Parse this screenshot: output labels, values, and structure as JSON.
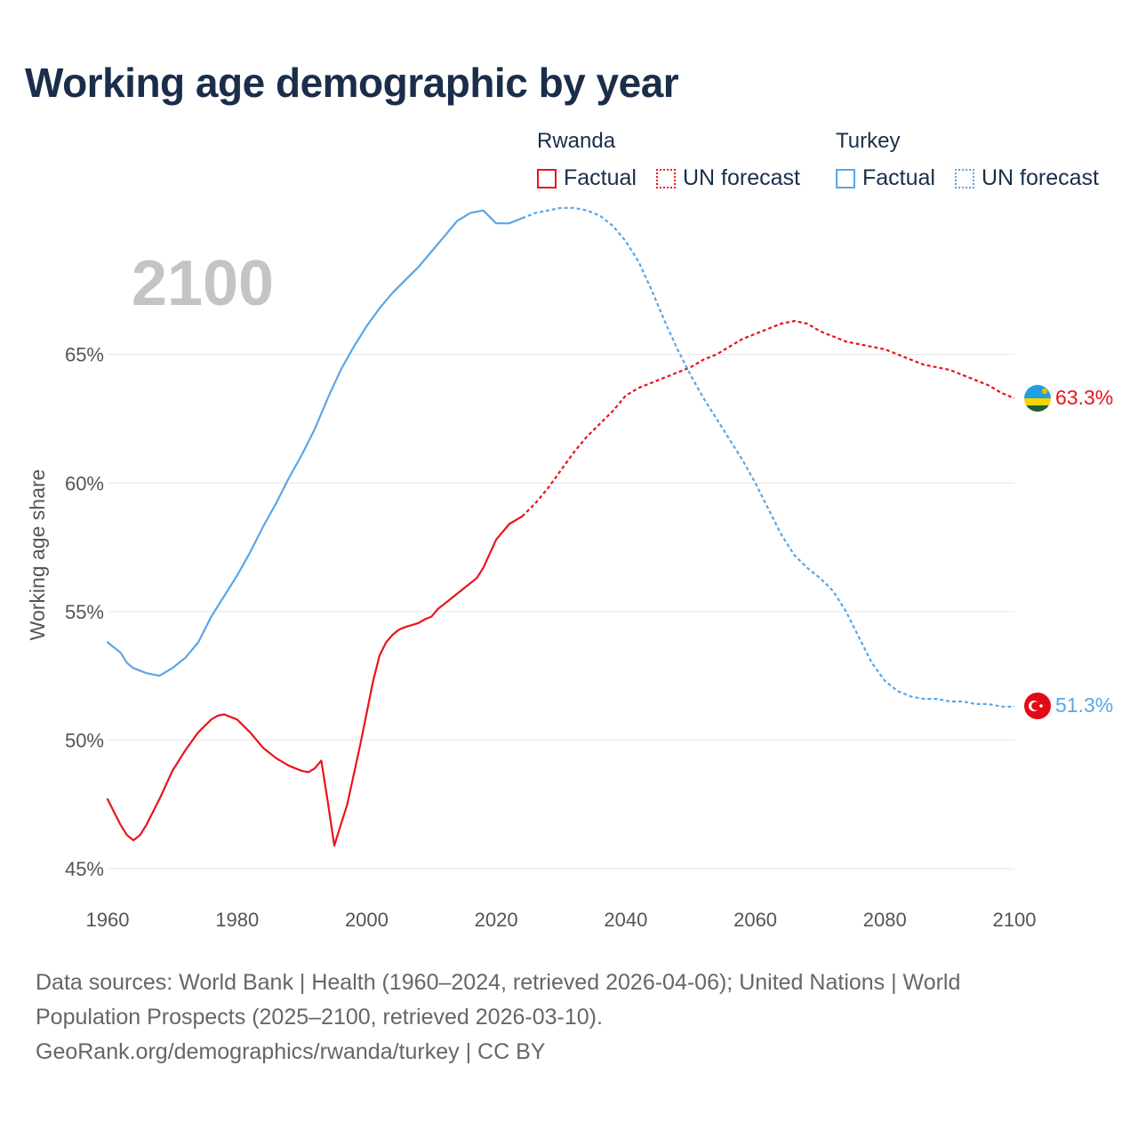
{
  "title": "Working age demographic by year",
  "legend": {
    "groups": [
      {
        "name": "Rwanda",
        "color": "#e8141c",
        "factual_label": "Factual",
        "forecast_label": "UN forecast"
      },
      {
        "name": "Turkey",
        "color": "#5aa6e6",
        "factual_label": "Factual",
        "forecast_label": "UN forecast"
      }
    ]
  },
  "year_overlay": "2100",
  "footer": {
    "line1": "Data sources: World Bank | Health (1960–2024, retrieved 2026-04-06); United Nations | World",
    "line2": "Population Prospects (2025–2100, retrieved 2026-03-10).",
    "line3": "GeoRank.org/demographics/rwanda/turkey | CC BY"
  },
  "chart_data": {
    "type": "line",
    "title": "Working age demographic by year",
    "xlabel": "",
    "ylabel": "Working age share",
    "xlim": [
      1960,
      2100
    ],
    "ylim": [
      45,
      69
    ],
    "x_ticks": [
      1960,
      1980,
      2000,
      2020,
      2040,
      2060,
      2080,
      2100
    ],
    "y_ticks": [
      45,
      50,
      55,
      60,
      65
    ],
    "y_tick_suffix": "%",
    "grid": true,
    "series": [
      {
        "name": "Rwanda",
        "color": "#e8141c",
        "end_label": "63.3%",
        "flag": "rwanda-flag",
        "factual": {
          "x": [
            1960,
            1962,
            1963,
            1964,
            1965,
            1966,
            1968,
            1970,
            1972,
            1974,
            1976,
            1977,
            1978,
            1980,
            1982,
            1984,
            1986,
            1988,
            1990,
            1991,
            1992,
            1993,
            1994,
            1995,
            1997,
            1999,
            2001,
            2002,
            2003,
            2004,
            2005,
            2006,
            2008,
            2009,
            2010,
            2011,
            2012,
            2014,
            2016,
            2017,
            2018,
            2020,
            2022,
            2024
          ],
          "y": [
            47.7,
            46.7,
            46.3,
            46.1,
            46.3,
            46.7,
            47.7,
            48.8,
            49.6,
            50.3,
            50.8,
            50.95,
            51.0,
            50.8,
            50.3,
            49.7,
            49.3,
            49.0,
            48.8,
            48.75,
            48.9,
            49.2,
            47.6,
            45.9,
            47.5,
            49.8,
            52.3,
            53.3,
            53.8,
            54.1,
            54.3,
            54.4,
            54.55,
            54.7,
            54.8,
            55.1,
            55.3,
            55.7,
            56.1,
            56.3,
            56.7,
            57.8,
            58.4,
            58.7
          ]
        },
        "forecast": {
          "x": [
            2024,
            2026,
            2028,
            2030,
            2032,
            2034,
            2036,
            2038,
            2040,
            2042,
            2044,
            2046,
            2048,
            2050,
            2052,
            2054,
            2056,
            2058,
            2060,
            2062,
            2064,
            2066,
            2068,
            2070,
            2072,
            2074,
            2076,
            2078,
            2080,
            2082,
            2084,
            2086,
            2088,
            2090,
            2092,
            2094,
            2096,
            2098,
            2100
          ],
          "y": [
            58.7,
            59.2,
            59.8,
            60.5,
            61.2,
            61.8,
            62.3,
            62.8,
            63.4,
            63.7,
            63.9,
            64.1,
            64.3,
            64.5,
            64.8,
            65.0,
            65.3,
            65.6,
            65.8,
            66.0,
            66.2,
            66.3,
            66.2,
            65.9,
            65.7,
            65.5,
            65.4,
            65.3,
            65.2,
            65.0,
            64.8,
            64.6,
            64.5,
            64.4,
            64.2,
            64.0,
            63.8,
            63.5,
            63.3
          ]
        }
      },
      {
        "name": "Turkey",
        "color": "#5aa6e6",
        "end_label": "51.3%",
        "flag": "turkey-flag",
        "factual": {
          "x": [
            1960,
            1962,
            1963,
            1964,
            1965,
            1966,
            1968,
            1970,
            1972,
            1974,
            1976,
            1978,
            1980,
            1982,
            1984,
            1986,
            1988,
            1990,
            1992,
            1994,
            1996,
            1998,
            2000,
            2002,
            2004,
            2006,
            2008,
            2010,
            2012,
            2014,
            2016,
            2018,
            2020,
            2022,
            2024
          ],
          "y": [
            53.8,
            53.4,
            53.0,
            52.8,
            52.7,
            52.6,
            52.5,
            52.8,
            53.2,
            53.8,
            54.8,
            55.6,
            56.4,
            57.3,
            58.3,
            59.2,
            60.2,
            61.1,
            62.1,
            63.3,
            64.4,
            65.3,
            66.1,
            66.8,
            67.4,
            67.9,
            68.4,
            69.0,
            69.6,
            70.2,
            70.5,
            70.6,
            70.1,
            70.1,
            70.3
          ]
        },
        "forecast": {
          "x": [
            2024,
            2026,
            2028,
            2030,
            2032,
            2034,
            2036,
            2038,
            2040,
            2042,
            2044,
            2046,
            2048,
            2050,
            2052,
            2054,
            2056,
            2058,
            2060,
            2062,
            2064,
            2066,
            2068,
            2070,
            2072,
            2074,
            2076,
            2078,
            2080,
            2082,
            2084,
            2086,
            2088,
            2090,
            2092,
            2094,
            2096,
            2098,
            2100
          ],
          "y": [
            70.3,
            70.5,
            70.6,
            70.7,
            70.7,
            70.6,
            70.4,
            70.0,
            69.4,
            68.6,
            67.5,
            66.3,
            65.2,
            64.2,
            63.3,
            62.5,
            61.7,
            60.9,
            60.0,
            59.0,
            58.0,
            57.2,
            56.7,
            56.3,
            55.8,
            55.0,
            54.0,
            53.0,
            52.3,
            51.9,
            51.7,
            51.6,
            51.6,
            51.5,
            51.5,
            51.4,
            51.4,
            51.3,
            51.3
          ]
        }
      }
    ]
  }
}
